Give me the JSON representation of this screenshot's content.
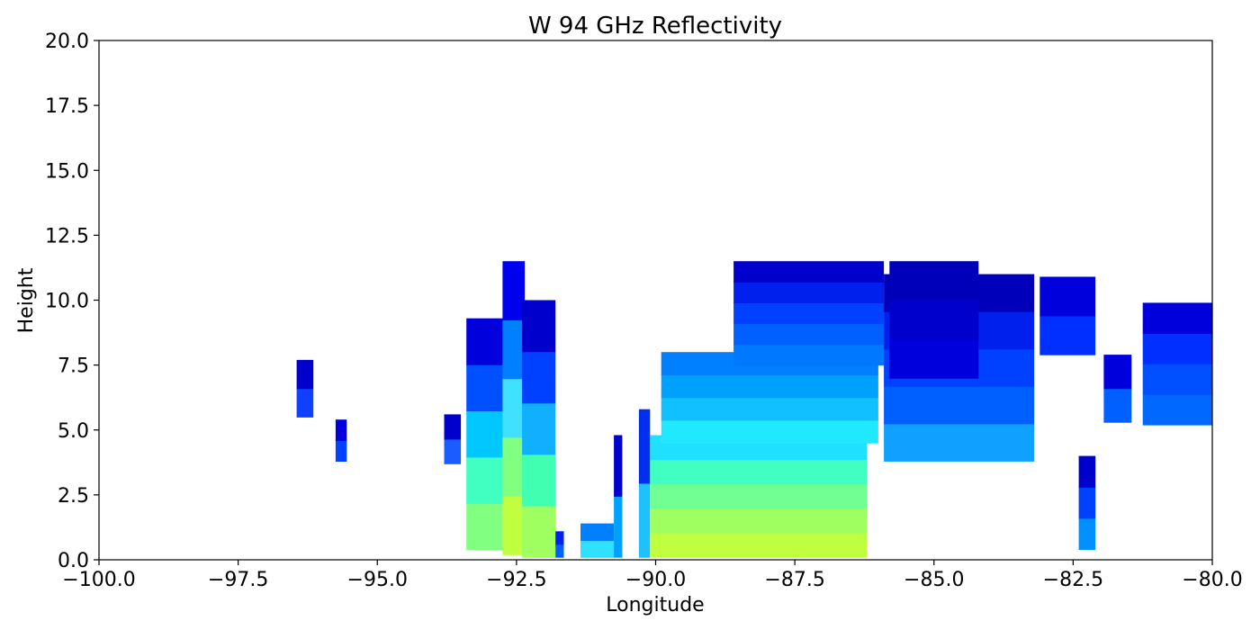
{
  "chart_data": {
    "type": "heatmap",
    "title": "W 94 GHz Reflectivity",
    "xlabel": "Longitude",
    "ylabel": "Height",
    "xlim": [
      -100,
      -80
    ],
    "ylim": [
      0,
      20
    ],
    "grid": false,
    "colormap": "jet",
    "x_ticks": [
      "−100.0",
      "−97.5",
      "−95.0",
      "−92.5",
      "−90.0",
      "−87.5",
      "−85.0",
      "−82.5",
      "−80.0"
    ],
    "x_tick_values": [
      -100,
      -97.5,
      -95,
      -92.5,
      -90,
      -87.5,
      -85,
      -82.5,
      -80
    ],
    "y_ticks": [
      "0.0",
      "2.5",
      "5.0",
      "7.5",
      "10.0",
      "12.5",
      "15.0",
      "17.5",
      "20.0"
    ],
    "y_tick_values": [
      0,
      2.5,
      5,
      7.5,
      10,
      12.5,
      15,
      17.5,
      20
    ],
    "regions": [
      {
        "name": "cell-a",
        "x": [
          -96.45,
          -96.15
        ],
        "y": [
          5.5,
          7.7
        ],
        "colors": [
          "#1040ff",
          "#0000cc"
        ]
      },
      {
        "name": "cell-b",
        "x": [
          -95.75,
          -95.55
        ],
        "y": [
          3.8,
          5.4
        ],
        "colors": [
          "#0040ff",
          "#0000dd"
        ]
      },
      {
        "name": "cell-c",
        "x": [
          -93.8,
          -93.5
        ],
        "y": [
          3.7,
          5.6
        ],
        "colors": [
          "#1a5cff",
          "#0000cc"
        ]
      },
      {
        "name": "tower-left",
        "x": [
          -93.4,
          -92.7
        ],
        "y": [
          0.4,
          9.3
        ],
        "colors": [
          "#80ff80",
          "#40ffc0",
          "#00c8ff",
          "#0050ff",
          "#0000dd"
        ]
      },
      {
        "name": "tower-core",
        "x": [
          -92.75,
          -92.35
        ],
        "y": [
          0.2,
          11.5
        ],
        "colors": [
          "#c0ff40",
          "#80ff80",
          "#40e0ff",
          "#0080ff",
          "#0000ee"
        ]
      },
      {
        "name": "tower-right",
        "x": [
          -92.4,
          -91.8
        ],
        "y": [
          0.1,
          10.0
        ],
        "colors": [
          "#a0ff60",
          "#40ffb0",
          "#10b0ff",
          "#0040ff",
          "#0000cc"
        ]
      },
      {
        "name": "low-a",
        "x": [
          -91.8,
          -91.65
        ],
        "y": [
          0.1,
          1.1
        ],
        "colors": [
          "#0060ff",
          "#0020ee"
        ]
      },
      {
        "name": "low-b",
        "x": [
          -91.35,
          -90.75
        ],
        "y": [
          0.1,
          1.4
        ],
        "colors": [
          "#30e0ff",
          "#0080ff"
        ]
      },
      {
        "name": "spike-a",
        "x": [
          -90.75,
          -90.6
        ],
        "y": [
          0.1,
          4.8
        ],
        "colors": [
          "#00a0ff",
          "#0000cc"
        ]
      },
      {
        "name": "spike-b",
        "x": [
          -90.3,
          -90.1
        ],
        "y": [
          0.1,
          5.8
        ],
        "colors": [
          "#20c0ff",
          "#0030ee"
        ]
      },
      {
        "name": "main-low",
        "x": [
          -90.1,
          -86.2
        ],
        "y": [
          0.1,
          4.8
        ],
        "colors": [
          "#c0ff40",
          "#a0ff60",
          "#70ff90",
          "#40ffc0",
          "#20e0ff"
        ]
      },
      {
        "name": "main-mid",
        "x": [
          -89.9,
          -86.0
        ],
        "y": [
          4.5,
          8.0
        ],
        "colors": [
          "#20e8ff",
          "#10c0ff",
          "#00a0ff",
          "#0080ff"
        ]
      },
      {
        "name": "main-top",
        "x": [
          -88.6,
          -85.9
        ],
        "y": [
          7.5,
          11.5
        ],
        "colors": [
          "#0078ff",
          "#0060ff",
          "#0040ff",
          "#0020ee",
          "#0000cc"
        ]
      },
      {
        "name": "east-anvil",
        "x": [
          -85.9,
          -83.2
        ],
        "y": [
          3.8,
          11.0
        ],
        "colors": [
          "#10a0ff",
          "#0060ff",
          "#0040ff",
          "#0020ee",
          "#0000bb"
        ]
      },
      {
        "name": "east-top",
        "x": [
          -85.8,
          -84.2
        ],
        "y": [
          7.0,
          11.5
        ],
        "colors": [
          "#0000dd",
          "#0000cc",
          "#0000bb"
        ]
      },
      {
        "name": "cell-d",
        "x": [
          -83.1,
          -82.1
        ],
        "y": [
          7.9,
          10.9
        ],
        "colors": [
          "#0030ff",
          "#0000dd"
        ]
      },
      {
        "name": "low-c",
        "x": [
          -82.4,
          -82.1
        ],
        "y": [
          0.4,
          4.0
        ],
        "colors": [
          "#0090ff",
          "#0040ff",
          "#0000cc"
        ]
      },
      {
        "name": "cell-e",
        "x": [
          -81.95,
          -81.45
        ],
        "y": [
          5.3,
          7.9
        ],
        "colors": [
          "#0060ff",
          "#0000dd"
        ]
      },
      {
        "name": "cell-f",
        "x": [
          -81.25,
          -80.0
        ],
        "y": [
          5.2,
          9.9
        ],
        "colors": [
          "#0068ff",
          "#0050ff",
          "#0030ff",
          "#0000dd"
        ]
      }
    ]
  }
}
